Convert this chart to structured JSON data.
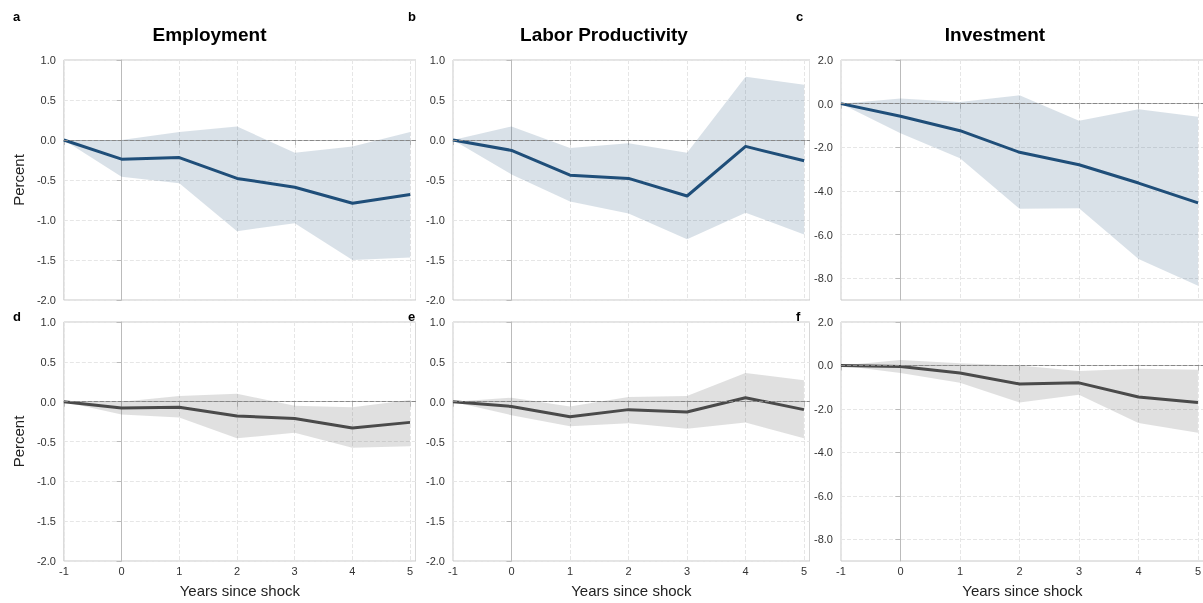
{
  "chart_data": [
    {
      "type": "line",
      "title": "Employment",
      "annotations": [
        "a"
      ],
      "ylabel": "Percent",
      "x": [
        -1,
        0,
        1,
        2,
        3,
        4,
        5
      ],
      "xlim": [
        -1,
        5.1
      ],
      "xticks": [
        -1,
        0,
        1,
        2,
        3,
        4,
        5
      ],
      "ylim": [
        -2,
        1
      ],
      "yticks": [
        {
          "value": -2,
          "label": "-2.0"
        },
        {
          "value": -1.5,
          "label": "-1.5"
        },
        {
          "value": -1,
          "label": "-1.0"
        },
        {
          "value": -0.5,
          "label": "-0.5"
        },
        {
          "value": 0,
          "label": "0.0"
        },
        {
          "value": 0.5,
          "label": "0.5"
        },
        {
          "value": 1,
          "label": "1.0"
        }
      ],
      "tick_labels": "y",
      "grid": true,
      "legend": false,
      "ref_lines": [
        {
          "axis": "y",
          "value": 0,
          "color": "#888888",
          "line_style": "dashed"
        }
      ],
      "series": [
        {
          "color": "#1f4e79",
          "values": [
            0,
            -0.24,
            -0.22,
            -0.48,
            -0.59,
            -0.79,
            -0.68
          ],
          "upper": [
            0,
            0.0,
            0.1,
            0.17,
            -0.16,
            -0.08,
            0.1
          ],
          "lower": [
            0,
            -0.46,
            -0.54,
            -1.14,
            -1.04,
            -1.5,
            -1.47
          ]
        }
      ]
    },
    {
      "type": "line",
      "title": "Labor Productivity",
      "annotations": [
        "b"
      ],
      "x": [
        -1,
        0,
        1,
        2,
        3,
        4,
        5
      ],
      "xlim": [
        -1,
        5.1
      ],
      "xticks": [
        -1,
        0,
        1,
        2,
        3,
        4,
        5
      ],
      "ylim": [
        -2,
        1
      ],
      "yticks": [
        {
          "value": -2,
          "label": "-2.0"
        },
        {
          "value": -1.5,
          "label": "-1.5"
        },
        {
          "value": -1,
          "label": "-1.0"
        },
        {
          "value": -0.5,
          "label": "-0.5"
        },
        {
          "value": 0,
          "label": "0.0"
        },
        {
          "value": 0.5,
          "label": "0.5"
        },
        {
          "value": 1,
          "label": "1.0"
        }
      ],
      "tick_labels": "y",
      "grid": true,
      "legend": false,
      "ref_lines": [
        {
          "axis": "y",
          "value": 0,
          "color": "#888888",
          "line_style": "dashed"
        }
      ],
      "series": [
        {
          "color": "#1f4e79",
          "values": [
            0,
            -0.13,
            -0.44,
            -0.48,
            -0.7,
            -0.08,
            -0.26
          ],
          "upper": [
            0,
            0.17,
            -0.1,
            -0.04,
            -0.16,
            0.79,
            0.69
          ],
          "lower": [
            0,
            -0.43,
            -0.77,
            -0.92,
            -1.24,
            -0.91,
            -1.18
          ]
        }
      ]
    },
    {
      "type": "line",
      "title": "Investment",
      "annotations": [
        "c"
      ],
      "x": [
        -1,
        0,
        1,
        2,
        3,
        4,
        5
      ],
      "xlim": [
        -1,
        5.1
      ],
      "xticks": [
        -1,
        0,
        1,
        2,
        3,
        4,
        5
      ],
      "ylim": [
        -9,
        2
      ],
      "yticks": [
        {
          "value": -8,
          "label": "-8.0"
        },
        {
          "value": -6,
          "label": "-6.0"
        },
        {
          "value": -4,
          "label": "-4.0"
        },
        {
          "value": -2,
          "label": "-2.0"
        },
        {
          "value": 0,
          "label": "0.0"
        },
        {
          "value": 2,
          "label": "2.0"
        }
      ],
      "tick_labels": "y",
      "grid": true,
      "legend": false,
      "ref_lines": [
        {
          "axis": "y",
          "value": 0,
          "color": "#888888",
          "line_style": "dashed"
        }
      ],
      "series": [
        {
          "color": "#1f4e79",
          "values": [
            0,
            -0.58,
            -1.24,
            -2.23,
            -2.8,
            -3.64,
            -4.55
          ],
          "upper": [
            0,
            0.23,
            0.08,
            0.38,
            -0.79,
            -0.26,
            -0.6
          ],
          "lower": [
            0,
            -1.36,
            -2.5,
            -4.82,
            -4.8,
            -7.12,
            -8.35
          ]
        }
      ]
    },
    {
      "type": "line",
      "annotations": [
        "d"
      ],
      "xlabel": "Years since shock",
      "ylabel": "Percent",
      "x": [
        -1,
        0,
        1,
        2,
        3,
        4,
        5
      ],
      "xlim": [
        -1,
        5.1
      ],
      "xticks": [
        -1,
        0,
        1,
        2,
        3,
        4,
        5
      ],
      "ylim": [
        -2,
        1
      ],
      "yticks": [
        {
          "value": -2,
          "label": "-2.0"
        },
        {
          "value": -1.5,
          "label": "-1.5"
        },
        {
          "value": -1,
          "label": "-1.0"
        },
        {
          "value": -0.5,
          "label": "-0.5"
        },
        {
          "value": 0,
          "label": "0.0"
        },
        {
          "value": 0.5,
          "label": "0.5"
        },
        {
          "value": 1,
          "label": "1.0"
        }
      ],
      "grid": true,
      "legend": false,
      "ref_lines": [
        {
          "axis": "y",
          "value": 0,
          "color": "#888888",
          "line_style": "dashed"
        }
      ],
      "series": [
        {
          "color": "#4a4a4a",
          "values": [
            0,
            -0.08,
            -0.07,
            -0.18,
            -0.21,
            -0.33,
            -0.26
          ],
          "upper": [
            0,
            0.0,
            0.07,
            0.1,
            -0.05,
            -0.07,
            0.02
          ],
          "lower": [
            0,
            -0.16,
            -0.2,
            -0.46,
            -0.39,
            -0.58,
            -0.56
          ]
        }
      ]
    },
    {
      "type": "line",
      "annotations": [
        "e"
      ],
      "xlabel": "Years since shock",
      "x": [
        -1,
        0,
        1,
        2,
        3,
        4,
        5
      ],
      "xlim": [
        -1,
        5.1
      ],
      "xticks": [
        -1,
        0,
        1,
        2,
        3,
        4,
        5
      ],
      "ylim": [
        -2,
        1
      ],
      "yticks": [
        {
          "value": -2,
          "label": "-2.0"
        },
        {
          "value": -1.5,
          "label": "-1.5"
        },
        {
          "value": -1,
          "label": "-1.0"
        },
        {
          "value": -0.5,
          "label": "-0.5"
        },
        {
          "value": 0,
          "label": "0.0"
        },
        {
          "value": 0.5,
          "label": "0.5"
        },
        {
          "value": 1,
          "label": "1.0"
        }
      ],
      "grid": true,
      "legend": false,
      "ref_lines": [
        {
          "axis": "y",
          "value": 0,
          "color": "#888888",
          "line_style": "dashed"
        }
      ],
      "series": [
        {
          "color": "#4a4a4a",
          "values": [
            0,
            -0.06,
            -0.19,
            -0.1,
            -0.13,
            0.05,
            -0.1
          ],
          "upper": [
            0,
            0.05,
            -0.06,
            0.06,
            0.07,
            0.36,
            0.27
          ],
          "lower": [
            0,
            -0.17,
            -0.31,
            -0.27,
            -0.34,
            -0.26,
            -0.46
          ]
        }
      ]
    },
    {
      "type": "line",
      "annotations": [
        "f"
      ],
      "xlabel": "Years since shock",
      "x": [
        -1,
        0,
        1,
        2,
        3,
        4,
        5
      ],
      "xlim": [
        -1,
        5.1
      ],
      "xticks": [
        -1,
        0,
        1,
        2,
        3,
        4,
        5
      ],
      "ylim": [
        -9,
        2
      ],
      "yticks": [
        {
          "value": -8,
          "label": "-8.0"
        },
        {
          "value": -6,
          "label": "-6.0"
        },
        {
          "value": -4,
          "label": "-4.0"
        },
        {
          "value": -2,
          "label": "-2.0"
        },
        {
          "value": 0,
          "label": "0.0"
        },
        {
          "value": 2,
          "label": "2.0"
        }
      ],
      "grid": true,
      "legend": false,
      "ref_lines": [
        {
          "axis": "y",
          "value": 0,
          "color": "#888888",
          "line_style": "dashed"
        }
      ],
      "series": [
        {
          "color": "#4a4a4a",
          "values": [
            0,
            -0.05,
            -0.35,
            -0.85,
            -0.8,
            -1.45,
            -1.7
          ],
          "upper": [
            0,
            0.25,
            0.1,
            0.0,
            -0.25,
            -0.15,
            -0.2
          ],
          "lower": [
            0,
            -0.35,
            -0.8,
            -1.7,
            -1.35,
            -2.65,
            -3.1
          ]
        }
      ]
    }
  ]
}
